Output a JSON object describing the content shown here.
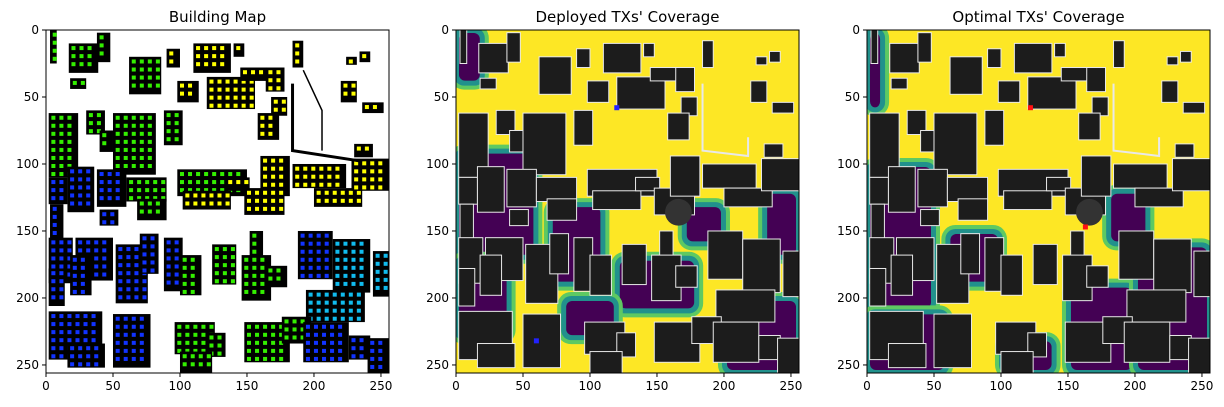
{
  "chart_data": [
    {
      "type": "heatmap",
      "title": "Building Map",
      "xlim": [
        0,
        255
      ],
      "ylim": [
        255,
        0
      ],
      "xticks": [
        0,
        50,
        100,
        150,
        200,
        250
      ],
      "yticks": [
        0,
        50,
        100,
        150,
        200,
        250
      ],
      "colors": {
        "background": "#ffffff",
        "building": "#000000",
        "marker_yellow": "#ffff00",
        "marker_green": "#33ee00",
        "marker_cyan": "#11bbee",
        "marker_blue": "#1133ff"
      }
    },
    {
      "type": "heatmap",
      "title": "Deployed TXs' Coverage",
      "xlim": [
        0,
        255
      ],
      "ylim": [
        255,
        0
      ],
      "xticks": [
        0,
        50,
        100,
        150,
        200,
        250
      ],
      "yticks": [
        0,
        50,
        100,
        150,
        200,
        250
      ],
      "colors": {
        "high": "#fde725",
        "mid_high": "#5ec962",
        "mid": "#21918c",
        "low": "#440154",
        "building": "#1c1c1c",
        "outline": "#e8e8e8",
        "tx": "#2222ff"
      }
    },
    {
      "type": "heatmap",
      "title": "Optimal TXs' Coverage",
      "xlim": [
        0,
        255
      ],
      "ylim": [
        255,
        0
      ],
      "xticks": [
        0,
        50,
        100,
        150,
        200,
        250
      ],
      "yticks": [
        0,
        50,
        100,
        150,
        200,
        250
      ],
      "colors": {
        "high": "#fde725",
        "mid_high": "#5ec962",
        "mid": "#21918c",
        "low": "#440154",
        "building": "#1c1c1c",
        "outline": "#e8e8e8",
        "tx": "#ff1111"
      }
    }
  ]
}
